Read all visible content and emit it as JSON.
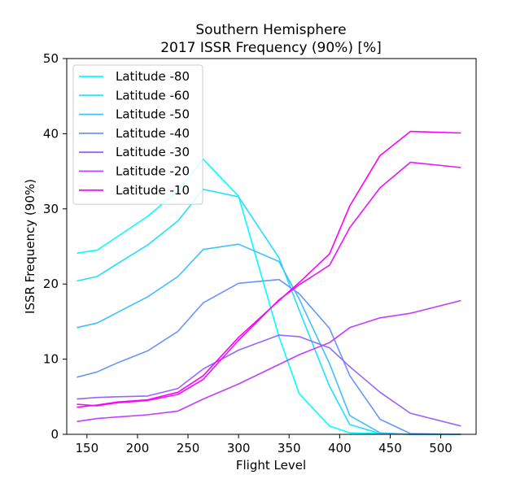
{
  "chart_data": {
    "type": "line",
    "title": "Southern Hemisphere",
    "subtitle": "2017 ISSR Frequency (90%) [%]",
    "xlabel": "Flight Level",
    "ylabel": "ISSR Frequency (90%)",
    "xlim": [
      130,
      535
    ],
    "ylim": [
      0,
      50
    ],
    "xticks": [
      150,
      200,
      250,
      300,
      350,
      400,
      450,
      500
    ],
    "yticks": [
      0,
      10,
      20,
      30,
      40,
      50
    ],
    "grid": false,
    "legend_position": "top-left",
    "x": [
      140,
      160,
      180,
      210,
      240,
      265,
      300,
      340,
      360,
      390,
      410,
      440,
      470,
      520
    ],
    "series": [
      {
        "name": "Latitude -80",
        "color": "#00ffff",
        "values": [
          24.1,
          24.5,
          26.3,
          29.0,
          32.4,
          36.6,
          31.7,
          13.0,
          5.4,
          1.1,
          0.2,
          0.1,
          0.0,
          0.0
        ]
      },
      {
        "name": "Latitude -60",
        "color": "#1ee1ff",
        "values": [
          20.4,
          21.0,
          22.7,
          25.2,
          28.4,
          32.6,
          31.6,
          23.5,
          16.5,
          6.4,
          1.3,
          0.1,
          0.0,
          0.0
        ]
      },
      {
        "name": "Latitude -50",
        "color": "#3fc0ff",
        "values": [
          14.2,
          14.8,
          16.2,
          18.3,
          21.0,
          24.6,
          25.3,
          23.0,
          18.0,
          9.4,
          2.5,
          0.2,
          0.0,
          0.0
        ]
      },
      {
        "name": "Latitude -40",
        "color": "#6a95ff",
        "values": [
          7.6,
          8.3,
          9.5,
          11.1,
          13.7,
          17.5,
          20.1,
          20.6,
          18.7,
          14.1,
          7.8,
          2.0,
          0.1,
          0.0
        ]
      },
      {
        "name": "Latitude -30",
        "color": "#9566ff",
        "values": [
          4.7,
          4.9,
          5.0,
          5.1,
          6.1,
          8.7,
          11.2,
          13.2,
          13.0,
          11.5,
          9.0,
          5.6,
          2.8,
          1.1
        ]
      },
      {
        "name": "Latitude -20",
        "color": "#c03fff",
        "values": [
          1.7,
          2.1,
          2.3,
          2.6,
          3.1,
          4.7,
          6.7,
          9.3,
          10.6,
          12.2,
          14.2,
          15.5,
          16.1,
          17.8
        ]
      },
      {
        "name": "Latitude -10",
        "color": "#ea14ff",
        "values": [
          4.0,
          3.8,
          4.2,
          4.5,
          5.3,
          7.3,
          12.5,
          17.9,
          19.9,
          22.5,
          27.5,
          32.8,
          36.2,
          35.5
        ]
      },
      {
        "name": "",
        "color": "#ff00ff",
        "values": [
          3.6,
          3.9,
          4.3,
          4.6,
          5.6,
          7.8,
          12.9,
          17.8,
          20.2,
          24.0,
          30.4,
          37.1,
          40.3,
          40.1
        ]
      }
    ]
  }
}
